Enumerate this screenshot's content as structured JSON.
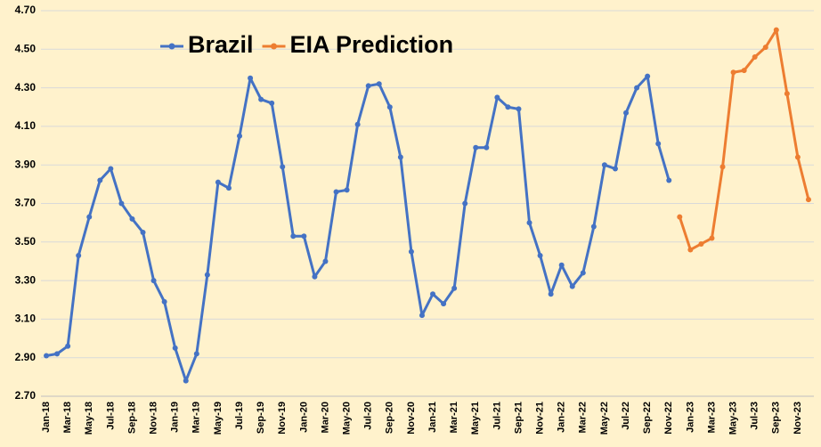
{
  "chart_data": {
    "type": "line",
    "categories": [
      "Jan-18",
      null,
      "Mar-18",
      null,
      "May-18",
      null,
      "Jul-18",
      null,
      "Sep-18",
      null,
      "Nov-18",
      null,
      "Jan-19",
      null,
      "Mar-19",
      null,
      "May-19",
      null,
      "Jul-19",
      null,
      "Sep-19",
      null,
      "Nov-19",
      null,
      "Jan-20",
      null,
      "Mar-20",
      null,
      "May-20",
      null,
      "Jul-20",
      null,
      "Sep-20",
      null,
      "Nov-20",
      null,
      "Jan-21",
      null,
      "Mar-21",
      null,
      "May-21",
      null,
      "Jul-21",
      null,
      "Sep-21",
      null,
      "Nov-21",
      null,
      "Jan-22",
      null,
      "Mar-22",
      null,
      "May-22",
      null,
      "Jul-22",
      null,
      "Sep-22",
      null,
      "Nov-22",
      null,
      "Jan-23",
      null,
      "Mar-23",
      null,
      "May-23",
      null,
      "Jul-23",
      null,
      "Sep-23",
      null,
      "Nov-23",
      null
    ],
    "series": [
      {
        "name": "Brazil",
        "color": "#4472c4",
        "values": [
          2.91,
          2.92,
          2.96,
          3.43,
          3.63,
          3.82,
          3.88,
          3.7,
          3.62,
          3.55,
          3.3,
          3.19,
          2.95,
          2.78,
          2.92,
          3.33,
          3.81,
          3.78,
          4.05,
          4.35,
          4.24,
          4.22,
          3.89,
          3.53,
          3.53,
          3.32,
          3.4,
          3.76,
          3.77,
          4.11,
          4.31,
          4.32,
          4.2,
          3.94,
          3.45,
          3.12,
          3.23,
          3.18,
          3.26,
          3.7,
          3.99,
          3.99,
          4.25,
          4.2,
          4.19,
          3.6,
          3.43,
          3.23,
          3.38,
          3.27,
          3.34,
          3.58,
          3.9,
          3.88,
          4.17,
          4.3,
          4.36,
          4.01,
          3.82,
          null,
          null,
          null,
          null,
          null,
          null,
          null,
          null,
          null,
          null,
          null,
          null,
          null
        ]
      },
      {
        "name": "EIA Prediction",
        "color": "#ed7d31",
        "values": [
          null,
          null,
          null,
          null,
          null,
          null,
          null,
          null,
          null,
          null,
          null,
          null,
          null,
          null,
          null,
          null,
          null,
          null,
          null,
          null,
          null,
          null,
          null,
          null,
          null,
          null,
          null,
          null,
          null,
          null,
          null,
          null,
          null,
          null,
          null,
          null,
          null,
          null,
          null,
          null,
          null,
          null,
          null,
          null,
          null,
          null,
          null,
          null,
          null,
          null,
          null,
          null,
          null,
          null,
          null,
          null,
          null,
          null,
          null,
          3.63,
          3.46,
          3.49,
          3.52,
          3.89,
          4.38,
          4.39,
          4.46,
          4.51,
          4.6,
          4.27,
          3.94,
          3.72
        ]
      }
    ],
    "ylim": [
      2.7,
      4.7
    ],
    "yticks": [
      {
        "value": 2.7,
        "label": "2.70"
      },
      {
        "value": 2.9,
        "label": "2.90"
      },
      {
        "value": 3.1,
        "label": "3.10"
      },
      {
        "value": 3.3,
        "label": "3.30"
      },
      {
        "value": 3.5,
        "label": "3.50"
      },
      {
        "value": 3.7,
        "label": "3.70"
      },
      {
        "value": 3.9,
        "label": "3.90"
      },
      {
        "value": 4.1,
        "label": "4.10"
      },
      {
        "value": 4.3,
        "label": "4.30"
      },
      {
        "value": 4.5,
        "label": "4.50"
      },
      {
        "value": 4.7,
        "label": "4.70"
      }
    ],
    "grid": true,
    "legend": "top-left"
  }
}
